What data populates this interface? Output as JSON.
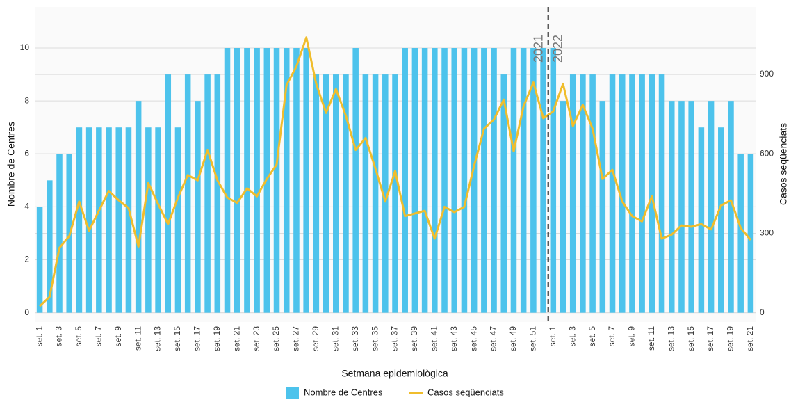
{
  "chart_data": {
    "type": "bar_line",
    "x_label": "Setmana epidemiològica",
    "y_label": "Nombre de Centres",
    "y2_label": "Casos seqüenciats",
    "annotations": [
      "2021",
      "2022"
    ],
    "categories": [
      "set. 1",
      null,
      "set. 3",
      null,
      "set. 5",
      null,
      "set. 7",
      null,
      "set. 9",
      null,
      "set. 11",
      null,
      "set. 13",
      null,
      "set. 15",
      null,
      "set. 17",
      null,
      "set. 19",
      null,
      "set. 21",
      null,
      "set. 23",
      null,
      "set. 25",
      null,
      "set. 27",
      null,
      "set. 29",
      null,
      "set. 31",
      null,
      "set. 33",
      null,
      "set. 35",
      null,
      "set. 37",
      null,
      "set. 39",
      null,
      "set. 41",
      null,
      "set. 43",
      null,
      "set. 45",
      null,
      "set. 47",
      null,
      "set. 49",
      null,
      "set. 51",
      null,
      "set. 1",
      null,
      "set. 3",
      null,
      "set. 5",
      null,
      "set. 7",
      null,
      "set. 9",
      null,
      "set. 11",
      null,
      "set. 13",
      null,
      "set. 15",
      null,
      "set. 17",
      null,
      "set. 19",
      null,
      "set. 21"
    ],
    "series": [
      {
        "name": "Nombre de Centres",
        "type": "bar",
        "color": "#4dc3ec",
        "values": [
          4,
          5,
          6,
          6,
          7,
          7,
          7,
          7,
          7,
          7,
          8,
          7,
          7,
          9,
          7,
          9,
          8,
          9,
          9,
          10,
          10,
          10,
          10,
          10,
          10,
          10,
          10,
          10,
          9,
          9,
          9,
          9,
          10,
          9,
          9,
          9,
          9,
          10,
          10,
          10,
          10,
          10,
          10,
          10,
          10,
          10,
          10,
          9,
          10,
          10,
          10,
          10,
          10,
          8,
          9,
          9,
          9,
          8,
          9,
          9,
          9,
          9,
          9,
          9,
          8,
          8,
          8,
          7,
          8,
          7,
          8,
          6,
          6
        ]
      },
      {
        "name": "Casos seqüenciats",
        "type": "line",
        "axis": "y2",
        "color": "#f0bd2c",
        "values": [
          25,
          60,
          245,
          290,
          420,
          310,
          385,
          460,
          425,
          395,
          250,
          490,
          410,
          335,
          435,
          520,
          500,
          615,
          500,
          435,
          415,
          470,
          440,
          505,
          560,
          860,
          930,
          1040,
          865,
          755,
          845,
          745,
          615,
          660,
          545,
          420,
          535,
          365,
          375,
          385,
          280,
          400,
          380,
          400,
          555,
          695,
          730,
          805,
          610,
          780,
          870,
          735,
          760,
          865,
          705,
          785,
          695,
          505,
          540,
          420,
          365,
          345,
          440,
          280,
          295,
          330,
          325,
          335,
          315,
          405,
          425,
          320,
          275
        ]
      }
    ],
    "ylim": [
      -0.35,
      11.55
    ],
    "yticks": [
      0,
      2,
      4,
      6,
      8,
      10
    ],
    "y2lim": [
      -35,
      1155
    ],
    "y2ticks": [
      0,
      300,
      600,
      900
    ],
    "grid": true,
    "legend": "bottom"
  }
}
